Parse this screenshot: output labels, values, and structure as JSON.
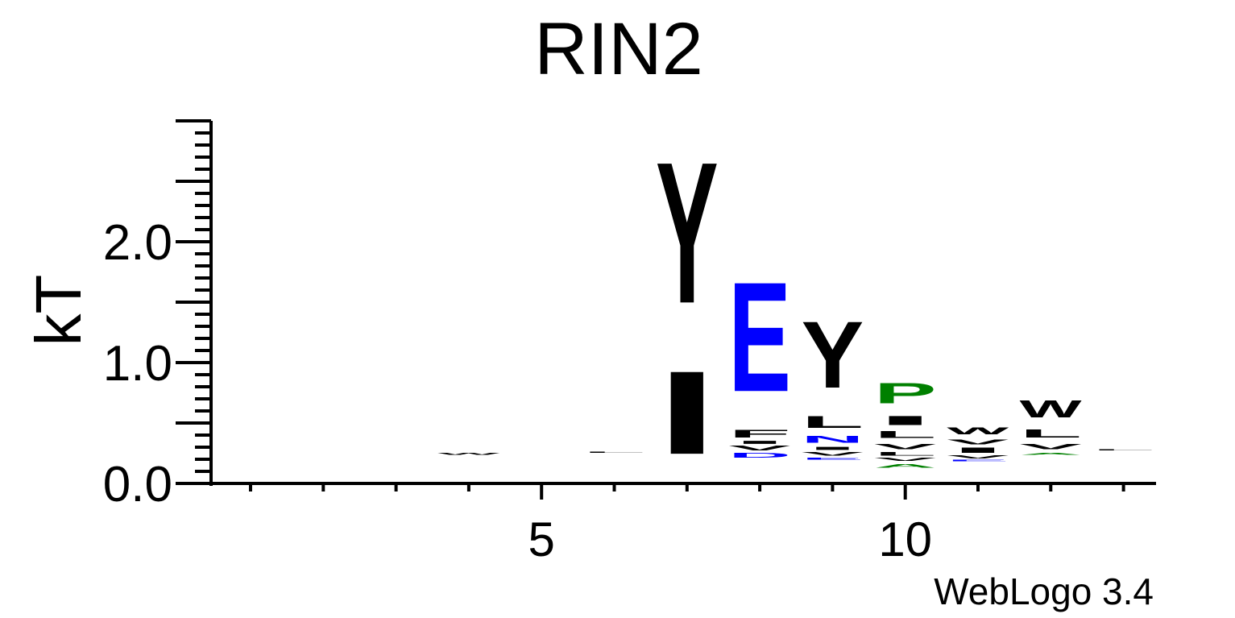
{
  "chart_data": {
    "type": "sequence_logo",
    "title": "RIN2",
    "xlabel": "",
    "ylabel": "kT",
    "ylim": [
      0,
      3.0
    ],
    "y_ticks": [
      "0.0",
      "1.0",
      "2.0"
    ],
    "x_ticks": [
      "5",
      "10"
    ],
    "x_range": [
      1,
      13
    ],
    "credit": "WebLogo 3.4",
    "colors": {
      "hydrophobic": "#000000",
      "acidic": "#0000ff",
      "polar": "#008000",
      "axis": "#000000"
    },
    "positions": [
      {
        "pos": 1,
        "letters": []
      },
      {
        "pos": 2,
        "letters": []
      },
      {
        "pos": 3,
        "letters": []
      },
      {
        "pos": 4,
        "letters": [
          {
            "ch": "W",
            "bottom": 0.23,
            "top": 0.26,
            "color": "#000000"
          }
        ]
      },
      {
        "pos": 5,
        "letters": []
      },
      {
        "pos": 6,
        "letters": [
          {
            "ch": "L",
            "bottom": 0.25,
            "top": 0.26,
            "color": "#000000"
          }
        ]
      },
      {
        "pos": 7,
        "letters": [
          {
            "ch": "I",
            "bottom": 0.03,
            "top": 1.13,
            "color": "#000000"
          },
          {
            "ch": "Y",
            "bottom": 1.13,
            "top": 3.0,
            "color": "#000000"
          }
        ]
      },
      {
        "pos": 8,
        "letters": [
          {
            "ch": "D",
            "bottom": 0.2,
            "top": 0.26,
            "color": "#0000ff"
          },
          {
            "ch": "V",
            "bottom": 0.26,
            "top": 0.32,
            "color": "#000000"
          },
          {
            "ch": "I",
            "bottom": 0.32,
            "top": 0.36,
            "color": "#000000"
          },
          {
            "ch": "F",
            "bottom": 0.36,
            "top": 0.46,
            "color": "#000000"
          },
          {
            "ch": "E",
            "bottom": 0.48,
            "top": 1.93,
            "color": "#0000ff"
          }
        ]
      },
      {
        "pos": 9,
        "letters": [
          {
            "ch": "E",
            "bottom": 0.19,
            "top": 0.22,
            "color": "#0000ff"
          },
          {
            "ch": "V",
            "bottom": 0.22,
            "top": 0.27,
            "color": "#000000"
          },
          {
            "ch": "I",
            "bottom": 0.27,
            "top": 0.31,
            "color": "#000000"
          },
          {
            "ch": "N",
            "bottom": 0.32,
            "top": 0.41,
            "color": "#0000ff"
          },
          {
            "ch": "L",
            "bottom": 0.43,
            "top": 0.59,
            "color": "#000000"
          },
          {
            "ch": "Y",
            "bottom": 0.62,
            "top": 1.5,
            "color": "#000000"
          }
        ]
      },
      {
        "pos": 10,
        "letters": [
          {
            "ch": "A",
            "bottom": 0.12,
            "top": 0.17,
            "color": "#008000"
          },
          {
            "ch": "V",
            "bottom": 0.18,
            "top": 0.22,
            "color": "#000000"
          },
          {
            "ch": "L",
            "bottom": 0.22,
            "top": 0.27,
            "color": "#000000"
          },
          {
            "ch": "V",
            "bottom": 0.27,
            "top": 0.34,
            "color": "#000000"
          },
          {
            "ch": "L",
            "bottom": 0.36,
            "top": 0.45,
            "color": "#000000"
          },
          {
            "ch": "I",
            "bottom": 0.46,
            "top": 0.58,
            "color": "#000000"
          },
          {
            "ch": "P",
            "bottom": 0.61,
            "top": 0.88,
            "color": "#008000"
          }
        ]
      },
      {
        "pos": 11,
        "letters": [
          {
            "ch": "E",
            "bottom": 0.18,
            "top": 0.2,
            "color": "#0000ff"
          },
          {
            "ch": "V",
            "bottom": 0.2,
            "top": 0.24,
            "color": "#000000"
          },
          {
            "ch": "I",
            "bottom": 0.24,
            "top": 0.31,
            "color": "#000000"
          },
          {
            "ch": "V",
            "bottom": 0.31,
            "top": 0.37,
            "color": "#000000"
          },
          {
            "ch": "W",
            "bottom": 0.39,
            "top": 0.48,
            "color": "#000000"
          }
        ]
      },
      {
        "pos": 12,
        "letters": [
          {
            "ch": "A",
            "bottom": 0.23,
            "top": 0.26,
            "color": "#008000"
          },
          {
            "ch": "V",
            "bottom": 0.27,
            "top": 0.34,
            "color": "#000000"
          },
          {
            "ch": "L",
            "bottom": 0.36,
            "top": 0.47,
            "color": "#000000"
          },
          {
            "ch": "W",
            "bottom": 0.5,
            "top": 0.73,
            "color": "#000000"
          }
        ]
      },
      {
        "pos": 13,
        "letters": [
          {
            "ch": "L",
            "bottom": 0.27,
            "top": 0.28,
            "color": "#000000"
          }
        ]
      }
    ]
  }
}
